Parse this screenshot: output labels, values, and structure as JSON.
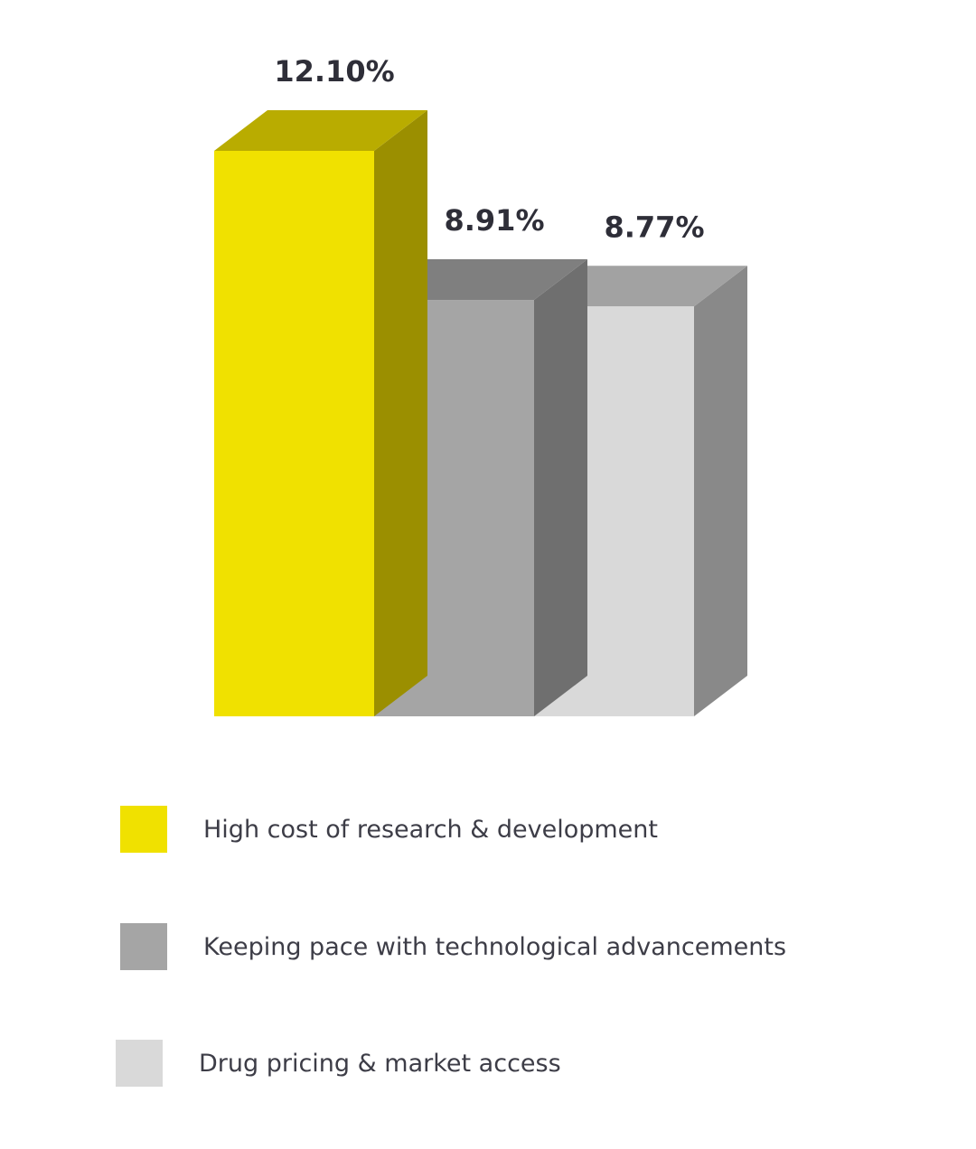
{
  "chart_data": {
    "type": "bar",
    "style": "3d-column",
    "categories": [
      "High cost of research & development",
      "Keeping pace with technological advancements",
      "Drug pricing & market access"
    ],
    "values": [
      12.1,
      8.91,
      8.77
    ],
    "data_labels": [
      "12.10%",
      "8.91%",
      "8.77%"
    ],
    "unit": "%",
    "title": "",
    "xlabel": "",
    "ylabel": "",
    "ylim": [
      0,
      12.1
    ],
    "grid": false,
    "axes_visible": false,
    "legend_position": "bottom-left",
    "colors": {
      "front": [
        "#f0e100",
        "#a5a5a5",
        "#d9d9d9"
      ],
      "top": [
        "#b9ac00",
        "#7f7f7f",
        "#a2a2a2"
      ],
      "side": [
        "#9b8f00",
        "#6f6f6f",
        "#898989"
      ]
    }
  },
  "legend": {
    "items": [
      {
        "label": "High cost of research & development",
        "color": "#f0e100"
      },
      {
        "label": "Keeping pace with technological advancements",
        "color": "#a5a5a5"
      },
      {
        "label": "Drug pricing & market access",
        "color": "#d9d9d9"
      }
    ]
  }
}
